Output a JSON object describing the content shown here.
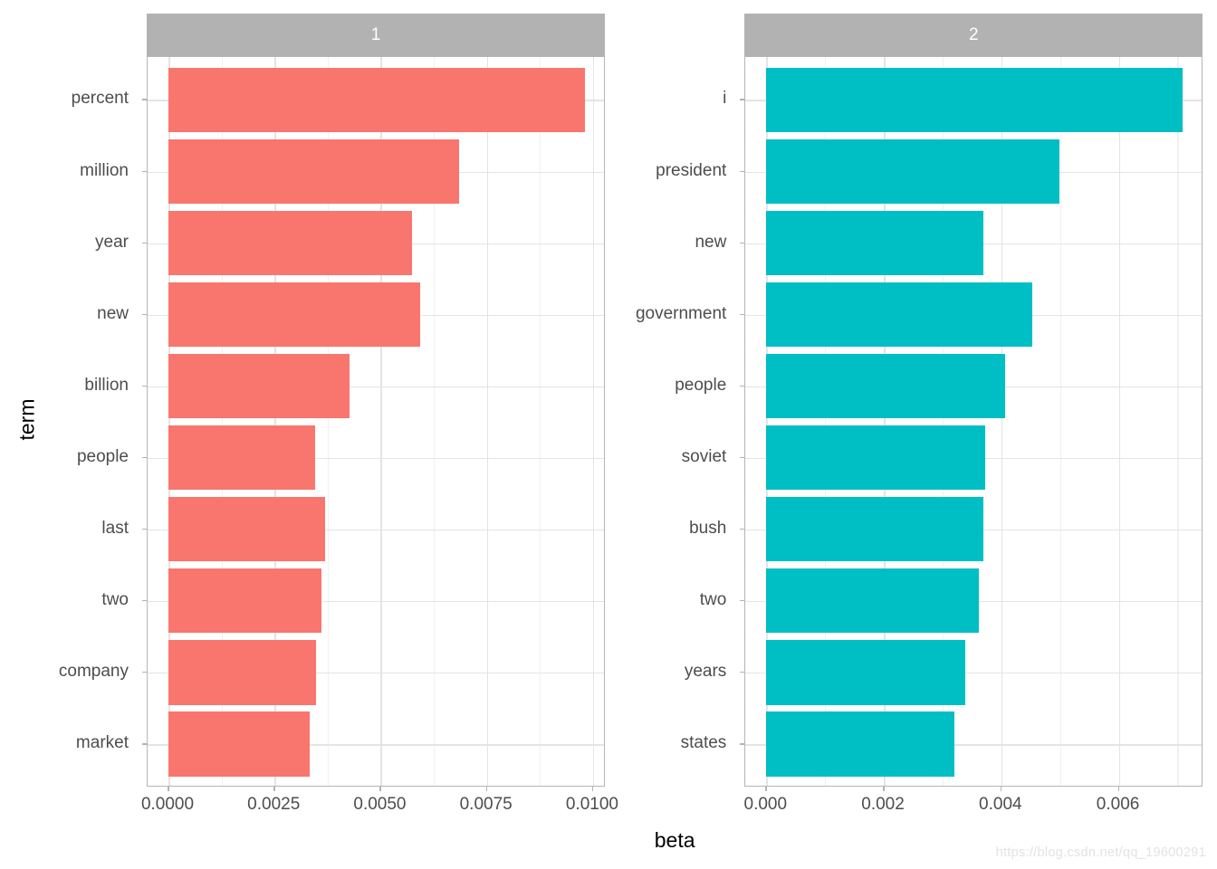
{
  "figure": {
    "watermark": "https://blog.csdn.net/qq_19600291"
  },
  "chart_data": {
    "type": "bar",
    "orientation": "horizontal",
    "xlabel": "beta",
    "ylabel": "term",
    "grid": "major and minor vertical, major horizontal",
    "legend": "none",
    "x_expand_fraction": 0.05,
    "facets": [
      {
        "label": "1",
        "bar_color": "#F8766D",
        "categories": [
          "percent",
          "million",
          "year",
          "new",
          "billion",
          "people",
          "last",
          "two",
          "company",
          "market"
        ],
        "values": [
          0.00981,
          0.00684,
          0.00574,
          0.00592,
          0.00427,
          0.00345,
          0.00368,
          0.0036,
          0.00348,
          0.00333
        ],
        "x_ticks": [
          0.0,
          0.0025,
          0.005,
          0.0075,
          0.01
        ],
        "x_tick_labels": [
          "0.0000",
          "0.0025",
          "0.0050",
          "0.0075",
          "0.0100"
        ],
        "xlim": [
          0,
          0.0103
        ]
      },
      {
        "label": "2",
        "bar_color": "#00BFC4",
        "categories": [
          "i",
          "president",
          "new",
          "government",
          "people",
          "soviet",
          "bush",
          "two",
          "years",
          "states"
        ],
        "values": [
          0.00709,
          0.00499,
          0.0037,
          0.00452,
          0.00407,
          0.00372,
          0.0037,
          0.00361,
          0.00339,
          0.0032
        ],
        "x_ticks": [
          0.0,
          0.002,
          0.004,
          0.006
        ],
        "x_tick_labels": [
          "0.000",
          "0.002",
          "0.004",
          "0.006"
        ],
        "xlim": [
          0,
          0.00744
        ]
      }
    ]
  },
  "colors": {
    "strip_bg": "#B2B2B2",
    "strip_text": "#FFFFFF",
    "panel_border": "#B5B5B5",
    "grid_major": "#E4E4E4",
    "grid_minor": "#F1F1F1",
    "tick_mark": "#B3B3B3",
    "tick_label": "#4D4D4D",
    "axis_title": "#000000",
    "watermark_text": "#E3E3E3"
  }
}
